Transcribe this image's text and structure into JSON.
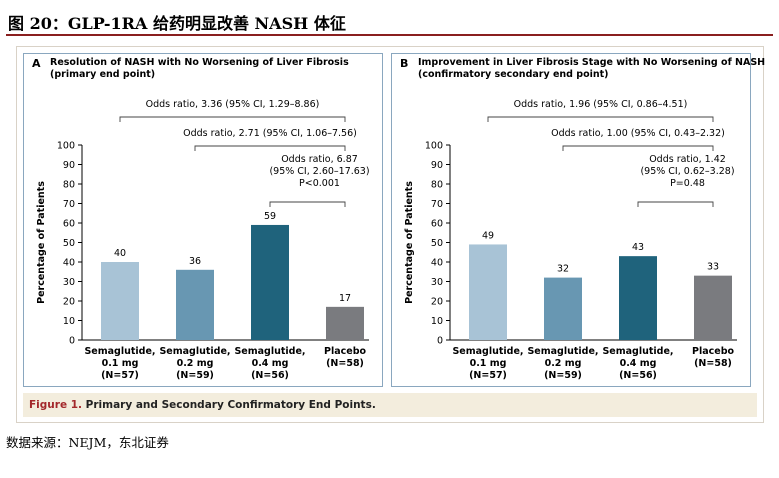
{
  "figure": {
    "title": "图 20：GLP-1RA 给药明显改善 NASH 体征",
    "caption_label": "Figure 1.",
    "caption_text": "Primary and Secondary Confirmatory End Points.",
    "source": "数据来源：NEJM，东北证券",
    "colors": {
      "title_rule": "#8a1f1f",
      "caption_label": "#a3282b",
      "caption_bg": "#f3eddd",
      "panel_border": "#8aa7bf"
    }
  },
  "chart_data": [
    {
      "type": "bar",
      "panel_letter": "A",
      "title": "Resolution of NASH with No Worsening of Liver Fibrosis",
      "subtitle": "(primary end point)",
      "ylabel": "Percentage of Patients",
      "ylim": [
        0,
        100
      ],
      "yticks": [
        0,
        10,
        20,
        30,
        40,
        50,
        60,
        70,
        80,
        90,
        100
      ],
      "categories": [
        [
          "Semaglutide,",
          "0.1 mg",
          "(N=57)"
        ],
        [
          "Semaglutide,",
          "0.2 mg",
          "(N=59)"
        ],
        [
          "Semaglutide,",
          "0.4 mg",
          "(N=56)"
        ],
        [
          "Placebo",
          "(N=58)"
        ]
      ],
      "values": [
        40,
        36,
        59,
        17
      ],
      "data_labels": [
        "40",
        "36",
        "59",
        "17"
      ],
      "colors": [
        "#a8c3d6",
        "#6897b2",
        "#1f637c",
        "#7a7b7f"
      ],
      "comparisons": [
        {
          "from": 0,
          "to": 3,
          "lines": [
            "Odds ratio, 3.36 (95% CI, 1.29–8.86)"
          ]
        },
        {
          "from": 1,
          "to": 3,
          "lines": [
            "Odds ratio, 2.71 (95% CI, 1.06–7.56)"
          ]
        },
        {
          "from": 2,
          "to": 3,
          "lines": [
            "Odds ratio, 6.87",
            "(95% CI, 2.60–17.63)",
            "P<0.001"
          ]
        }
      ]
    },
    {
      "type": "bar",
      "panel_letter": "B",
      "title": "Improvement in Liver Fibrosis Stage with No Worsening of NASH",
      "subtitle": "(confirmatory secondary end point)",
      "ylabel": "Percentage of Patients",
      "ylim": [
        0,
        100
      ],
      "yticks": [
        0,
        10,
        20,
        30,
        40,
        50,
        60,
        70,
        80,
        90,
        100
      ],
      "categories": [
        [
          "Semaglutide,",
          "0.1 mg",
          "(N=57)"
        ],
        [
          "Semaglutide,",
          "0.2 mg",
          "(N=59)"
        ],
        [
          "Semaglutide,",
          "0.4 mg",
          "(N=56)"
        ],
        [
          "Placebo",
          "(N=58)"
        ]
      ],
      "values": [
        49,
        32,
        43,
        33
      ],
      "data_labels": [
        "49",
        "32",
        "43",
        "33"
      ],
      "colors": [
        "#a8c3d6",
        "#6897b2",
        "#1f637c",
        "#7a7b7f"
      ],
      "comparisons": [
        {
          "from": 0,
          "to": 3,
          "lines": [
            "Odds ratio, 1.96 (95% CI, 0.86–4.51)"
          ]
        },
        {
          "from": 1,
          "to": 3,
          "lines": [
            "Odds ratio, 1.00 (95% CI, 0.43–2.32)"
          ]
        },
        {
          "from": 2,
          "to": 3,
          "lines": [
            "Odds ratio, 1.42",
            "(95% CI, 0.62–3.28)",
            "P=0.48"
          ]
        }
      ]
    }
  ]
}
